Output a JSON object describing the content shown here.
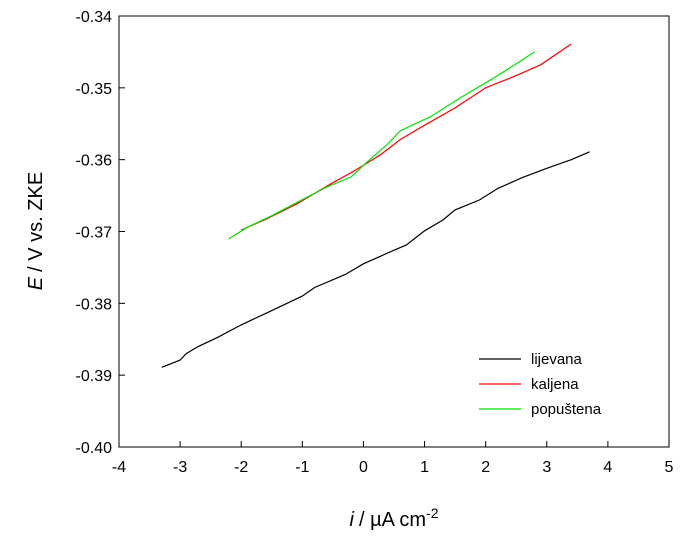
{
  "chart_data": {
    "type": "line",
    "xlabel": {
      "italic": "i",
      "unit": "/ µA cm",
      "sup": "-2"
    },
    "ylabel": {
      "italic": "E",
      "unit": "/ V vs. ZKE"
    },
    "xlim": [
      -4,
      5
    ],
    "ylim": [
      -0.4,
      -0.34
    ],
    "x_ticks": [
      -4,
      -3,
      -2,
      -1,
      0,
      1,
      2,
      3,
      4,
      5
    ],
    "x_tick_labels": [
      "-4",
      "-3",
      "-2",
      "-1",
      "0",
      "1",
      "2",
      "3",
      "4",
      "5"
    ],
    "y_ticks": [
      -0.4,
      -0.39,
      -0.38,
      -0.37,
      -0.36,
      -0.35,
      -0.34
    ],
    "y_tick_labels": [
      "-0.40",
      "-0.39",
      "-0.38",
      "-0.37",
      "-0.36",
      "-0.35",
      "-0.34"
    ],
    "grid": false,
    "legend_position": "bottom-right",
    "series": [
      {
        "name": "lijevana",
        "color": "#000000",
        "points": [
          [
            -3.3,
            -0.3889
          ],
          [
            -3.0,
            -0.3879
          ],
          [
            -2.9,
            -0.387
          ],
          [
            -2.7,
            -0.386
          ],
          [
            -2.4,
            -0.3848
          ],
          [
            -2.0,
            -0.383
          ],
          [
            -1.6,
            -0.3814
          ],
          [
            -1.0,
            -0.379
          ],
          [
            -0.8,
            -0.3778
          ],
          [
            -0.3,
            -0.376
          ],
          [
            0.0,
            -0.3745
          ],
          [
            0.5,
            -0.3726
          ],
          [
            0.7,
            -0.3719
          ],
          [
            1.0,
            -0.3699
          ],
          [
            1.3,
            -0.3684
          ],
          [
            1.5,
            -0.367
          ],
          [
            1.9,
            -0.3656
          ],
          [
            2.2,
            -0.364
          ],
          [
            2.6,
            -0.3625
          ],
          [
            3.0,
            -0.3612
          ],
          [
            3.4,
            -0.36
          ],
          [
            3.7,
            -0.3589
          ]
        ]
      },
      {
        "name": "kaljena",
        "color": "#ff0000",
        "points": [
          [
            -2.0,
            -0.3698
          ],
          [
            -1.6,
            -0.3683
          ],
          [
            -1.1,
            -0.3662
          ],
          [
            -0.5,
            -0.3632
          ],
          [
            -0.2,
            -0.3618
          ],
          [
            0.0,
            -0.3608
          ],
          [
            0.3,
            -0.3592
          ],
          [
            0.6,
            -0.3572
          ],
          [
            1.0,
            -0.3552
          ],
          [
            1.5,
            -0.3528
          ],
          [
            2.0,
            -0.35
          ],
          [
            2.5,
            -0.3483
          ],
          [
            2.9,
            -0.3468
          ],
          [
            3.4,
            -0.3439
          ]
        ]
      },
      {
        "name": "popuštena",
        "color": "#00e400",
        "points": [
          [
            -2.2,
            -0.371
          ],
          [
            -1.9,
            -0.3694
          ],
          [
            -1.5,
            -0.3678
          ],
          [
            -1.1,
            -0.366
          ],
          [
            -0.6,
            -0.3638
          ],
          [
            -0.2,
            -0.3624
          ],
          [
            0.1,
            -0.36
          ],
          [
            0.4,
            -0.3578
          ],
          [
            0.6,
            -0.356
          ],
          [
            1.1,
            -0.354
          ],
          [
            1.6,
            -0.3513
          ],
          [
            2.1,
            -0.3488
          ],
          [
            2.4,
            -0.3472
          ],
          [
            2.8,
            -0.345
          ]
        ]
      }
    ]
  }
}
